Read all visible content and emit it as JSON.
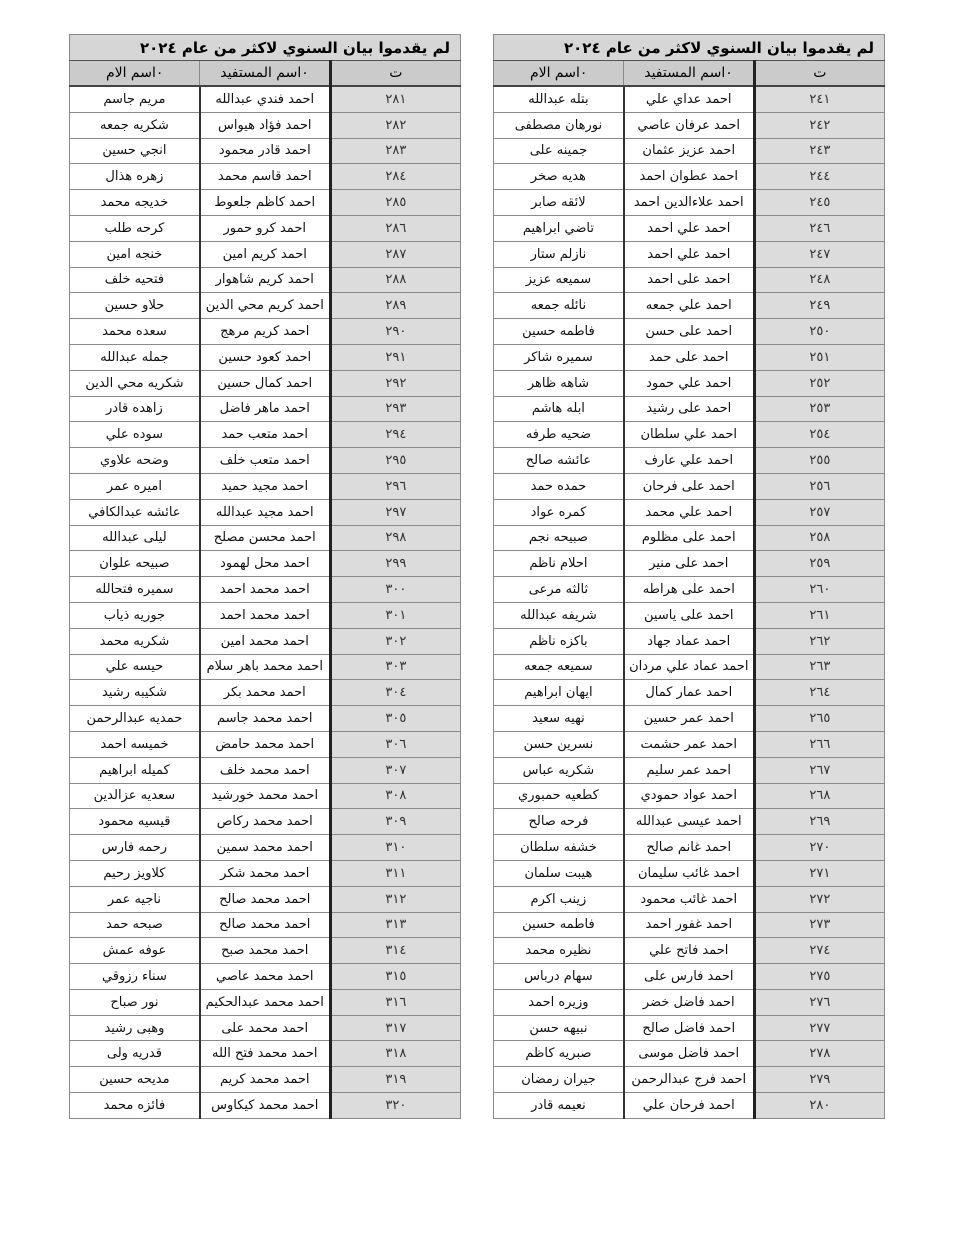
{
  "title": "لم يقدموا بيان السنوي لاكثر من عام ٢٠٢٤",
  "headers": {
    "num": "ت",
    "name": "٠اسم المستفيد",
    "mother": "٠اسم الام"
  },
  "tables": [
    {
      "rows": [
        [
          "٢٤١",
          "احمد عداي علي",
          "بتله عبدالله"
        ],
        [
          "٢٤٢",
          "احمد عرفان عاصي",
          "نورهان مصطفى"
        ],
        [
          "٢٤٣",
          "احمد عزيز عثمان",
          "جمينه على"
        ],
        [
          "٢٤٤",
          "احمد عطوان احمد",
          "هديه صخر"
        ],
        [
          "٢٤٥",
          "احمد علاءالدين احمد",
          "لائقه صابر"
        ],
        [
          "٢٤٦",
          "احمد علي احمد",
          "تاضي ابراهيم"
        ],
        [
          "٢٤٧",
          "احمد علي احمد",
          "نازلم ستار"
        ],
        [
          "٢٤٨",
          "احمد على احمد",
          "سميعه عزيز"
        ],
        [
          "٢٤٩",
          "احمد علي جمعه",
          "نائله جمعه"
        ],
        [
          "٢٥٠",
          "احمد على حسن",
          "فاطمه حسين"
        ],
        [
          "٢٥١",
          "احمد على حمد",
          "سميره شاكر"
        ],
        [
          "٢٥٢",
          "احمد علي حمود",
          "شاهه ظاهر"
        ],
        [
          "٢٥٣",
          "احمد على رشيد",
          "ابله هاشم"
        ],
        [
          "٢٥٤",
          "احمد علي سلطان",
          "ضحيه طرفه"
        ],
        [
          "٢٥٥",
          "احمد علي عارف",
          "عائشه صالح"
        ],
        [
          "٢٥٦",
          "احمد على فرحان",
          "حمده حمد"
        ],
        [
          "٢٥٧",
          "احمد علي محمد",
          "كمره عواد"
        ],
        [
          "٢٥٨",
          "احمد على مظلوم",
          "صبيحه نجم"
        ],
        [
          "٢٥٩",
          "احمد على منير",
          "احلام ناظم"
        ],
        [
          "٢٦٠",
          "احمد على هراطه",
          "ثالثه مرعى"
        ],
        [
          "٢٦١",
          "احمد على ياسين",
          "شريفه عبدالله"
        ],
        [
          "٢٦٢",
          "احمد عماد جهاد",
          "باكزه ناظم"
        ],
        [
          "٢٦٣",
          "احمد عماد علي مردان",
          "سميعه جمعه"
        ],
        [
          "٢٦٤",
          "احمد عمار كمال",
          "ايهان ابراهيم"
        ],
        [
          "٢٦٥",
          "احمد عمر حسين",
          "نهيه سعيد"
        ],
        [
          "٢٦٦",
          "احمد عمر حشمت",
          "نسرين حسن"
        ],
        [
          "٢٦٧",
          "احمد عمر سليم",
          "شكريه عباس"
        ],
        [
          "٢٦٨",
          "احمد عواد حمودي",
          "كطعيه حمبوري"
        ],
        [
          "٢٦٩",
          "احمد عيسى عبدالله",
          "فرحه صالح"
        ],
        [
          "٢٧٠",
          "احمد غانم صالح",
          "خشفه سلطان"
        ],
        [
          "٢٧١",
          "احمد غائب سليمان",
          "هيبت سلمان"
        ],
        [
          "٢٧٢",
          "احمد غائب محمود",
          "زينب اكرم"
        ],
        [
          "٢٧٣",
          "احمد غفور احمد",
          "فاطمه حسين"
        ],
        [
          "٢٧٤",
          "احمد فاتح علي",
          "نظيره محمد"
        ],
        [
          "٢٧٥",
          "احمد فارس على",
          "سهام درباس"
        ],
        [
          "٢٧٦",
          "احمد فاضل خضر",
          "وزيره احمد"
        ],
        [
          "٢٧٧",
          "احمد فاضل صالح",
          "نبيهه حسن"
        ],
        [
          "٢٧٨",
          "احمد فاضل موسى",
          "صبريه كاظم"
        ],
        [
          "٢٧٩",
          "احمد فرج عبدالرحمن",
          "جيران رمضان"
        ],
        [
          "٢٨٠",
          "احمد فرحان علي",
          "نعيمه قادر"
        ]
      ]
    },
    {
      "rows": [
        [
          "٢٨١",
          "احمد فندي عبدالله",
          "مريم جاسم"
        ],
        [
          "٢٨٢",
          "احمد فؤاد هيواس",
          "شكريه جمعه"
        ],
        [
          "٢٨٣",
          "احمد قادر محمود",
          "انجي حسين"
        ],
        [
          "٢٨٤",
          "احمد قاسم محمد",
          "زهره هذال"
        ],
        [
          "٢٨٥",
          "احمد كاظم جلعوط",
          "خديجه محمد"
        ],
        [
          "٢٨٦",
          "احمد كرو حمور",
          "كرحه طلب"
        ],
        [
          "٢٨٧",
          "احمد كريم امين",
          "خنجه امين"
        ],
        [
          "٢٨٨",
          "احمد كريم شاهوار",
          "فتحيه خلف"
        ],
        [
          "٢٨٩",
          "احمد كريم محي الدين",
          "حلاو حسين"
        ],
        [
          "٢٩٠",
          "احمد كريم مرهج",
          "سعده محمد"
        ],
        [
          "٢٩١",
          "احمد كعود حسين",
          "جمله عبدالله"
        ],
        [
          "٢٩٢",
          "احمد كمال حسين",
          "شكريه محي الدين"
        ],
        [
          "٢٩٣",
          "احمد ماهر فاضل",
          "زاهده قادر"
        ],
        [
          "٢٩٤",
          "احمد متعب حمد",
          "سوده علي"
        ],
        [
          "٢٩٥",
          "احمد متعب خلف",
          "وضحه علاوي"
        ],
        [
          "٢٩٦",
          "احمد مجيد حميد",
          "اميره عمر"
        ],
        [
          "٢٩٧",
          "احمد مجيد عبدالله",
          "عائشه عبدالكافي"
        ],
        [
          "٢٩٨",
          "احمد محسن مصلح",
          "ليلى عبدالله"
        ],
        [
          "٢٩٩",
          "احمد محل لهمود",
          "صبيحه علوان"
        ],
        [
          "٣٠٠",
          "احمد محمد احمد",
          "سميره فتحالله"
        ],
        [
          "٣٠١",
          "احمد محمد احمد",
          "جوريه ذياب"
        ],
        [
          "٣٠٢",
          "احمد محمد امين",
          "شكريه محمد"
        ],
        [
          "٣٠٣",
          "احمد محمد باهر سلام",
          "حيسه علي"
        ],
        [
          "٣٠٤",
          "احمد محمد بكر",
          "شكيبه رشيد"
        ],
        [
          "٣٠٥",
          "احمد محمد جاسم",
          "حمديه عبدالرحمن"
        ],
        [
          "٣٠٦",
          "احمد محمد حامض",
          "خميسه احمد"
        ],
        [
          "٣٠٧",
          "احمد محمد خلف",
          "كميله ابراهيم"
        ],
        [
          "٣٠٨",
          "احمد محمد خورشيد",
          "سعديه عزالدين"
        ],
        [
          "٣٠٩",
          "احمد محمد ركاص",
          "قيسيه محمود"
        ],
        [
          "٣١٠",
          "احمد محمد سمين",
          "رحمه فارس"
        ],
        [
          "٣١١",
          "احمد محمد شكر",
          "كلاويز رحيم"
        ],
        [
          "٣١٢",
          "احمد محمد صالح",
          "ناجيه عمر"
        ],
        [
          "٣١٣",
          "احمد محمد صالح",
          "صبحه حمد"
        ],
        [
          "٣١٤",
          "احمد محمد صبح",
          "عوفه عمش"
        ],
        [
          "٣١٥",
          "احمد محمد عاصي",
          "سناء رزوقي"
        ],
        [
          "٣١٦",
          "احمد محمد عبدالحكيم",
          "نور صباح"
        ],
        [
          "٣١٧",
          "احمد محمد على",
          "وهبى رشيد"
        ],
        [
          "٣١٨",
          "احمد محمد فتح الله",
          "قدريه ولى"
        ],
        [
          "٣١٩",
          "احمد محمد كريم",
          "مديحه حسين"
        ],
        [
          "٣٢٠",
          "احمد محمد كيكاوس",
          "فائزه محمد"
        ]
      ]
    }
  ]
}
